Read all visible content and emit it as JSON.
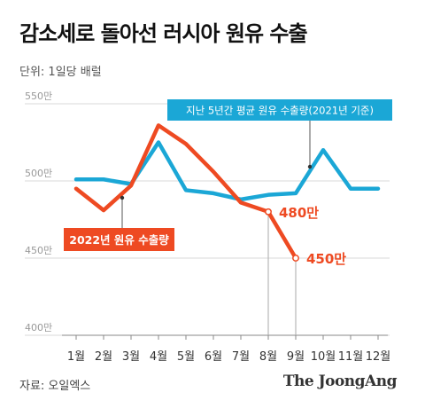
{
  "title": "감소세로 돌아선 러시아 원유 수출",
  "unit_label": "단위: 1일당 배럴",
  "source": "자료: 오일엑스",
  "publisher": "The JoongAng",
  "chart_data": {
    "type": "line",
    "categories": [
      "1월",
      "2월",
      "3월",
      "4월",
      "5월",
      "6월",
      "7월",
      "8월",
      "9월",
      "10월",
      "11월",
      "12월"
    ],
    "y_ticks": [
      "550만",
      "500만",
      "450만",
      "400만"
    ],
    "y_tick_values": [
      550,
      500,
      450,
      400
    ],
    "ylim": [
      400,
      550
    ],
    "grid": true,
    "series": [
      {
        "name": "지난 5년간 평균 원유 수출량(2021년 기준)",
        "color": "#1ba7d6",
        "values": [
          501,
          501,
          498,
          525,
          494,
          492,
          488,
          491,
          492,
          520,
          495,
          495
        ]
      },
      {
        "name": "2022년 원유 수출량",
        "color": "#ee4a22",
        "values": [
          495,
          481,
          497,
          536,
          524,
          506,
          486,
          480,
          450,
          null,
          null,
          null
        ]
      }
    ],
    "annotations": [
      {
        "label": "480만",
        "value": 480
      },
      {
        "label": "450만",
        "value": 450
      }
    ]
  }
}
